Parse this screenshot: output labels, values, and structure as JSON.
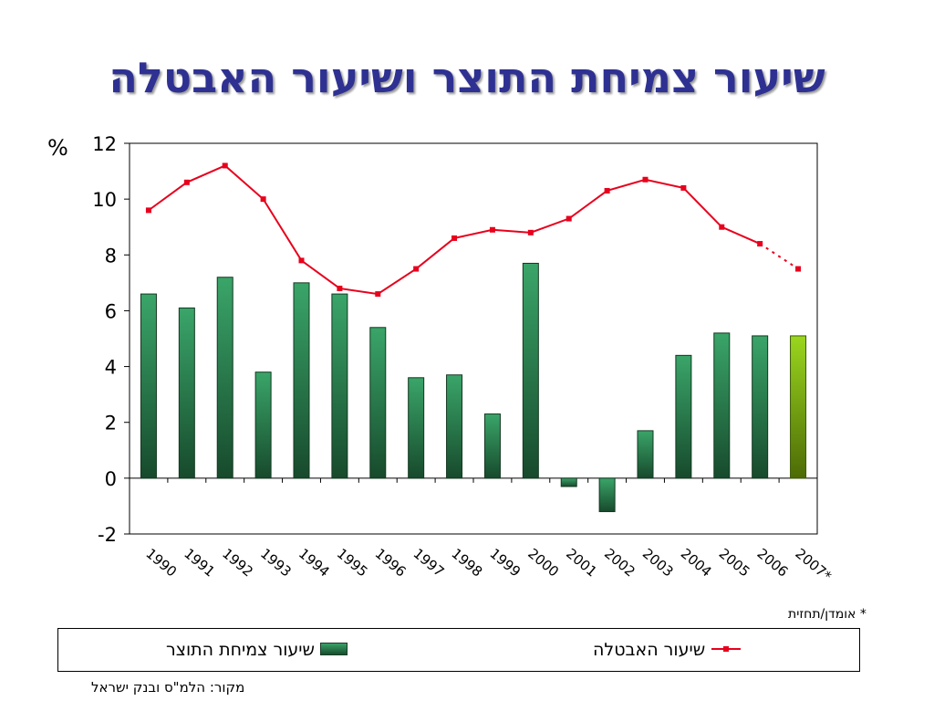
{
  "title": "שיעור צמיחת התוצר ושיעור האבטלה",
  "footnote": "* אומדן/תחזית",
  "source": "מקור: הלמ\"ס ובנק ישראל",
  "chart_data": {
    "type": "bar",
    "unit_label": "%",
    "categories": [
      "1990",
      "1991",
      "1992",
      "1993",
      "1994",
      "1995",
      "1996",
      "1997",
      "1998",
      "1999",
      "2000",
      "2001",
      "2002",
      "2003",
      "2004",
      "2005",
      "2006",
      "2007*"
    ],
    "ylim": [
      -2,
      12
    ],
    "yticks": [
      -2,
      0,
      2,
      4,
      6,
      8,
      10,
      12
    ],
    "grid": false,
    "legend_position": "bottom",
    "series": [
      {
        "name": "שיעור צמיחת התוצר",
        "type": "bar",
        "color": "#2e8b57",
        "highlight_color": "#8ccf1a",
        "values": [
          6.6,
          6.1,
          7.2,
          3.8,
          7.0,
          6.6,
          5.4,
          3.6,
          3.7,
          2.3,
          7.7,
          -0.3,
          -1.2,
          1.7,
          4.4,
          5.2,
          5.1,
          5.1
        ]
      },
      {
        "name": "שיעור האבטלה",
        "type": "line",
        "color": "#e8001c",
        "values": [
          9.6,
          10.6,
          11.2,
          10.0,
          7.8,
          6.8,
          6.6,
          7.5,
          8.6,
          8.9,
          8.8,
          9.3,
          10.3,
          10.7,
          10.4,
          9.0,
          8.4,
          7.5
        ]
      }
    ]
  }
}
